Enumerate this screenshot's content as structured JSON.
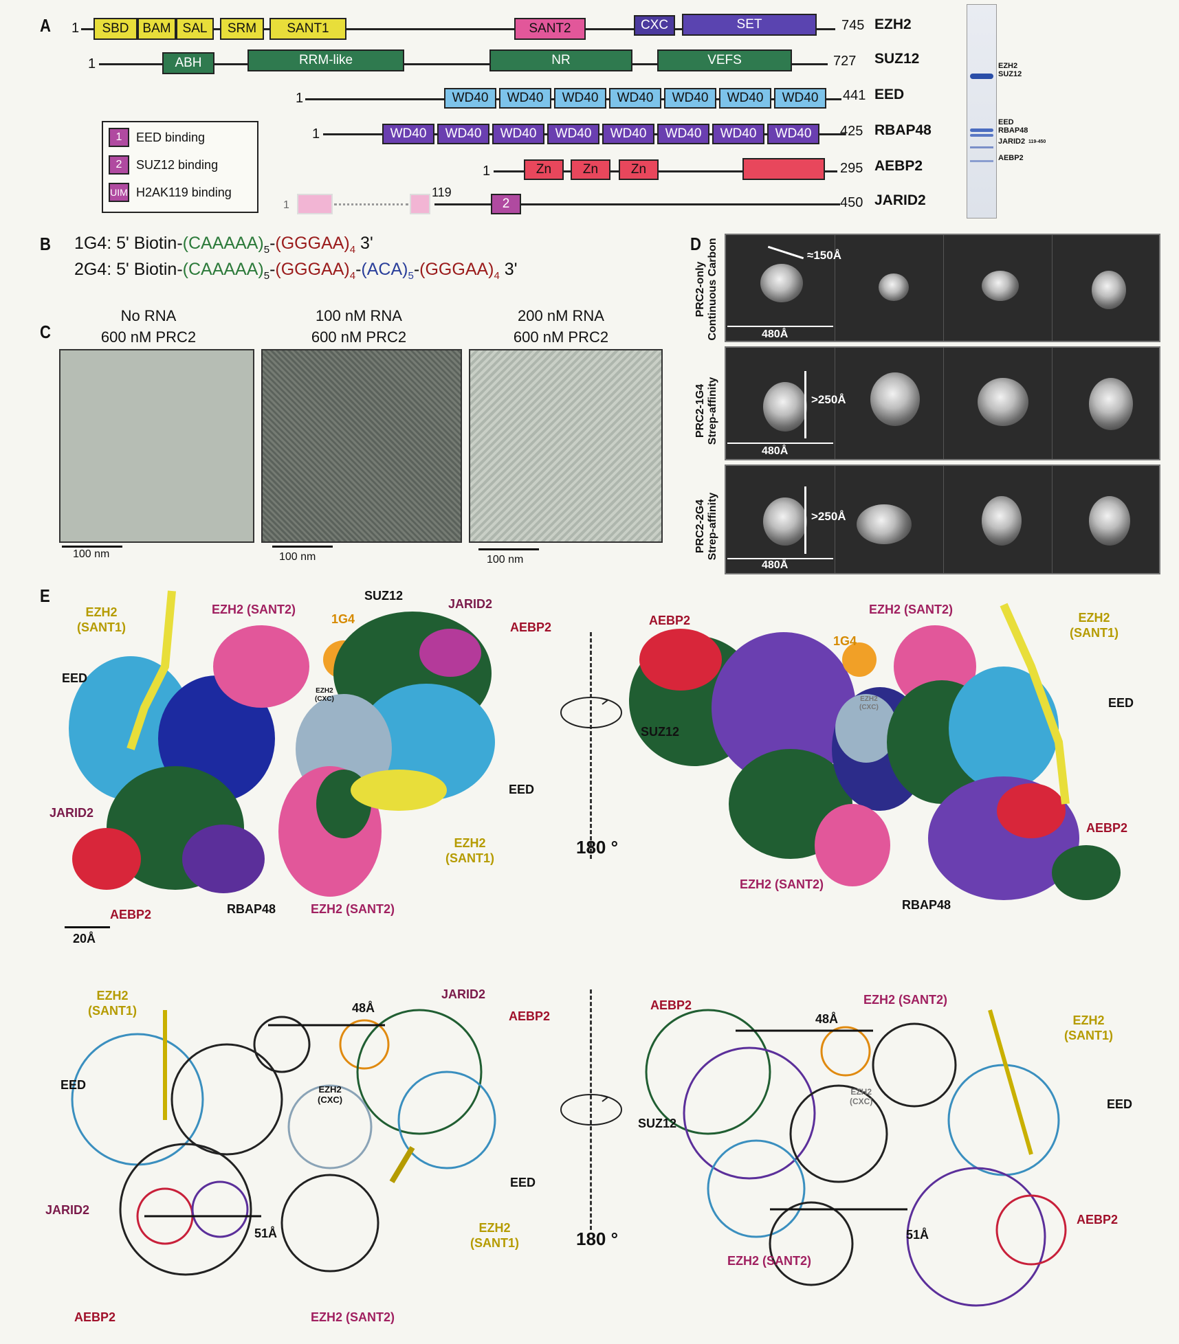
{
  "panels": {
    "a": "A",
    "b": "B",
    "c": "C",
    "d": "D",
    "e": "E"
  },
  "proteins": [
    {
      "key": "ezh2",
      "start": "1",
      "end": "745",
      "name": "EZH2"
    },
    {
      "key": "suz12",
      "start": "1",
      "end": "727",
      "name": "SUZ12"
    },
    {
      "key": "eed",
      "start": "1",
      "end": "441",
      "name": "EED"
    },
    {
      "key": "rbap48",
      "start": "1",
      "end": "425",
      "name": "RBAP48"
    },
    {
      "key": "aebp2",
      "start": "1",
      "end": "295",
      "name": "AEBP2"
    },
    {
      "key": "jarid2",
      "start": "1",
      "mid": "119",
      "end": "450",
      "name": "JARID2"
    }
  ],
  "domains": {
    "ezh2": [
      "SBD",
      "BAM",
      "SAL",
      "SRM",
      "SANT1",
      "SANT2",
      "CXC",
      "SET"
    ],
    "suz12": [
      "ABH",
      "RRM-like",
      "NR",
      "VEFS"
    ],
    "eed": [
      "WD40",
      "WD40",
      "WD40",
      "WD40",
      "WD40",
      "WD40",
      "WD40"
    ],
    "rbap48": [
      "WD40",
      "WD40",
      "WD40",
      "WD40",
      "WD40",
      "WD40",
      "WD40",
      "WD40"
    ],
    "aebp2": [
      "Zn",
      "Zn",
      "Zn"
    ],
    "jarid2": [
      "2"
    ]
  },
  "legend": [
    {
      "badge": "1",
      "label": "EED binding"
    },
    {
      "badge": "2",
      "label": "SUZ12 binding"
    },
    {
      "badge": "UIM",
      "label": "H2AK119 binding"
    }
  ],
  "gel_labels": [
    "EZH2",
    "SUZ12",
    "EED",
    "RBAP48",
    "JARID2",
    "119-450",
    "AEBP2"
  ],
  "sequences": [
    {
      "name": "1G4:",
      "prefix": "5' Biotin-",
      "parts": [
        "(CAAAAA)",
        "5",
        "-",
        "(GGGAA)",
        "4",
        " 3'"
      ]
    },
    {
      "name": "2G4:",
      "prefix": "5' Biotin-",
      "parts": [
        "(CAAAAA)",
        "5",
        "-",
        "(GGGAA)",
        "4",
        "-",
        "(ACA)",
        "5",
        "-",
        "(GGGAA)",
        "4",
        " 3'"
      ]
    }
  ],
  "panel_c": [
    {
      "line1": "No RNA",
      "line2": "600 nM PRC2",
      "scale": "100 nm"
    },
    {
      "line1": "100 nM RNA",
      "line2": "600 nM PRC2",
      "scale": "100 nm"
    },
    {
      "line1": "200 nM RNA",
      "line2": "600 nM PRC2",
      "scale": "100 nm"
    }
  ],
  "panel_d": [
    {
      "label1": "PRC2-only",
      "label2": "Continuous Carbon",
      "size": "≈150Å",
      "box": "480Å"
    },
    {
      "label1": "PRC2-1G4",
      "label2": "Strep-affinity",
      "size": ">250Å",
      "box": "480Å"
    },
    {
      "label1": "PRC2-2G4",
      "label2": "Strep-affinity",
      "size": ">250Å",
      "box": "480Å"
    }
  ],
  "panel_e": {
    "left_map": [
      "EZH2",
      "(SANT1)",
      "EZH2 (SANT2)",
      "1G4",
      "SUZ12",
      "JARID2",
      "AEBP2",
      "EED",
      "EZH2",
      "(CXC)",
      "EED",
      "JARID2",
      "EZH2",
      "(SANT1)",
      "AEBP2",
      "RBAP48",
      "EZH2 (SANT2)"
    ],
    "scale_bar": "20Å",
    "rotation": "180 °",
    "right_map": [
      "AEBP2",
      "EZH2 (SANT2)",
      "1G4",
      "EZH2",
      "(SANT1)",
      "EED",
      "SUZ12",
      "EZH2",
      "(CXC)",
      "AEBP2",
      "EZH2 (SANT2)",
      "RBAP48"
    ],
    "left_model": [
      "EZH2",
      "(SANT1)",
      "48Å",
      "JARID2",
      "AEBP2",
      "EED",
      "EZH2",
      "(CXC)",
      "EED",
      "JARID2",
      "51Å",
      "EZH2",
      "(SANT1)",
      "AEBP2",
      "EZH2 (SANT2)"
    ],
    "right_model": [
      "AEBP2",
      "EZH2 (SANT2)",
      "48Å",
      "EZH2",
      "(SANT1)",
      "SUZ12",
      "EZH2",
      "(CXC)",
      "EED",
      "AEBP2",
      "51Å",
      "EZH2 (SANT2)"
    ]
  },
  "colors": {
    "ezh2_nterm": "#e8de3a",
    "sant2": "#e2579a",
    "cxc": "#4b3a9e",
    "set": "#5a44b0",
    "suz12": "#2f7a4f",
    "eed": "#7dc3ea",
    "rbap48": "#6a3fb0",
    "aebp2": "#e8475c",
    "jarid2_light": "#f2b5d4",
    "jarid2": "#b04aa0"
  }
}
